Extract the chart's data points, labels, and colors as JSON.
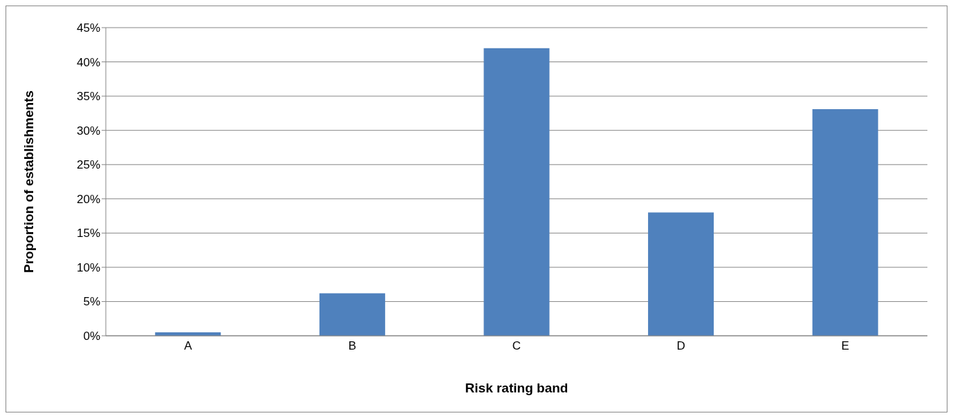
{
  "chart_data": {
    "type": "bar",
    "xlabel": "Risk rating band",
    "ylabel": "Proportion of establishments",
    "categories": [
      "A",
      "B",
      "C",
      "D",
      "E"
    ],
    "values": [
      0.5,
      6.2,
      42.0,
      18.0,
      33.1
    ],
    "color": "#4f81bd",
    "ylim": [
      0,
      45
    ],
    "yticks": [
      {
        "value": 0,
        "label": "0%"
      },
      {
        "value": 5,
        "label": "5%"
      },
      {
        "value": 10,
        "label": "10%"
      },
      {
        "value": 15,
        "label": "15%"
      },
      {
        "value": 20,
        "label": "20%"
      },
      {
        "value": 25,
        "label": "25%"
      },
      {
        "value": 30,
        "label": "30%"
      },
      {
        "value": 35,
        "label": "35%"
      },
      {
        "value": 40,
        "label": "40%"
      },
      {
        "value": 45,
        "label": "45%"
      }
    ],
    "grid": "y"
  }
}
